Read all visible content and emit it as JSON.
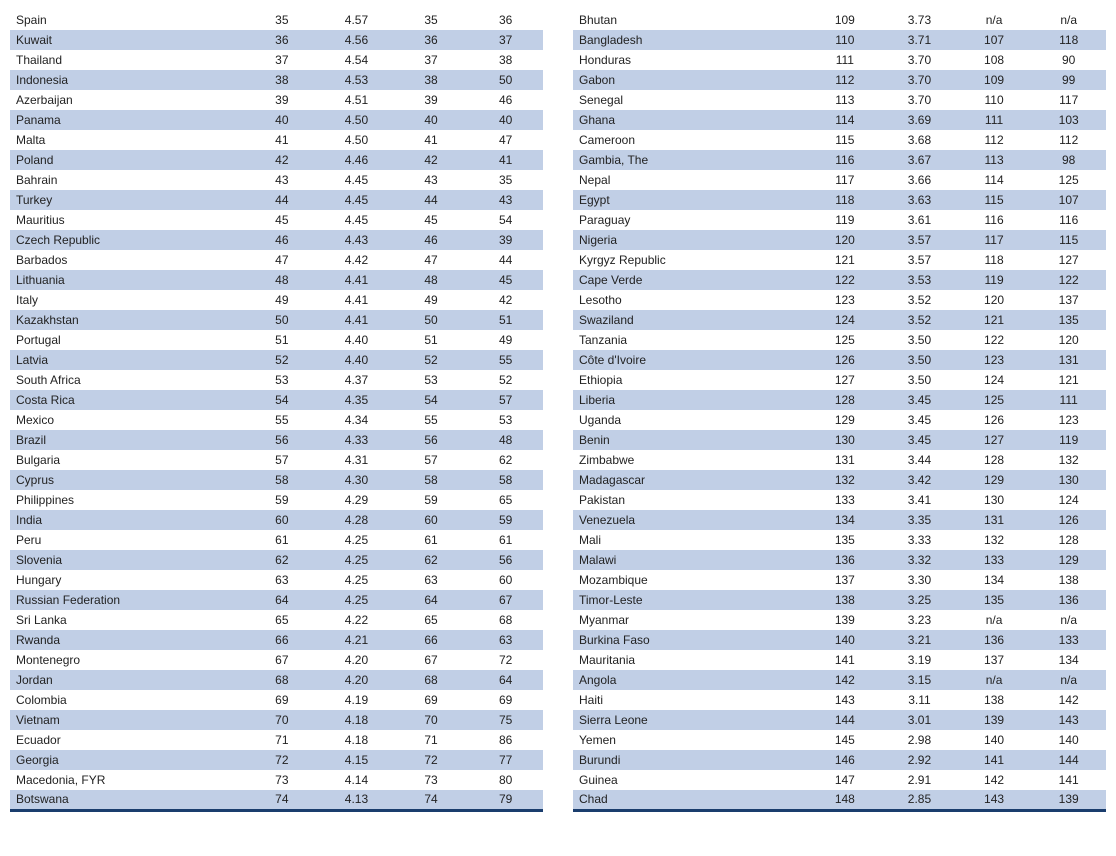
{
  "colors": {
    "stripe": "#c1cfe6",
    "border_bottom": "#1a3d6d",
    "text": "#222222",
    "background": "#ffffff"
  },
  "typography": {
    "font_family": "Arial, Helvetica, sans-serif",
    "font_size_pt": 9
  },
  "left_table": {
    "rows": [
      {
        "country": "Spain",
        "rank1": "35",
        "score": "4.57",
        "rank2": "35",
        "rank3": "36"
      },
      {
        "country": "Kuwait",
        "rank1": "36",
        "score": "4.56",
        "rank2": "36",
        "rank3": "37"
      },
      {
        "country": "Thailand",
        "rank1": "37",
        "score": "4.54",
        "rank2": "37",
        "rank3": "38"
      },
      {
        "country": "Indonesia",
        "rank1": "38",
        "score": "4.53",
        "rank2": "38",
        "rank3": "50"
      },
      {
        "country": "Azerbaijan",
        "rank1": "39",
        "score": "4.51",
        "rank2": "39",
        "rank3": "46"
      },
      {
        "country": "Panama",
        "rank1": "40",
        "score": "4.50",
        "rank2": "40",
        "rank3": "40"
      },
      {
        "country": "Malta",
        "rank1": "41",
        "score": "4.50",
        "rank2": "41",
        "rank3": "47"
      },
      {
        "country": "Poland",
        "rank1": "42",
        "score": "4.46",
        "rank2": "42",
        "rank3": "41"
      },
      {
        "country": "Bahrain",
        "rank1": "43",
        "score": "4.45",
        "rank2": "43",
        "rank3": "35"
      },
      {
        "country": "Turkey",
        "rank1": "44",
        "score": "4.45",
        "rank2": "44",
        "rank3": "43"
      },
      {
        "country": "Mauritius",
        "rank1": "45",
        "score": "4.45",
        "rank2": "45",
        "rank3": "54"
      },
      {
        "country": "Czech Republic",
        "rank1": "46",
        "score": "4.43",
        "rank2": "46",
        "rank3": "39"
      },
      {
        "country": "Barbados",
        "rank1": "47",
        "score": "4.42",
        "rank2": "47",
        "rank3": "44"
      },
      {
        "country": "Lithuania",
        "rank1": "48",
        "score": "4.41",
        "rank2": "48",
        "rank3": "45"
      },
      {
        "country": "Italy",
        "rank1": "49",
        "score": "4.41",
        "rank2": "49",
        "rank3": "42"
      },
      {
        "country": "Kazakhstan",
        "rank1": "50",
        "score": "4.41",
        "rank2": "50",
        "rank3": "51"
      },
      {
        "country": "Portugal",
        "rank1": "51",
        "score": "4.40",
        "rank2": "51",
        "rank3": "49"
      },
      {
        "country": "Latvia",
        "rank1": "52",
        "score": "4.40",
        "rank2": "52",
        "rank3": "55"
      },
      {
        "country": "South Africa",
        "rank1": "53",
        "score": "4.37",
        "rank2": "53",
        "rank3": "52"
      },
      {
        "country": "Costa Rica",
        "rank1": "54",
        "score": "4.35",
        "rank2": "54",
        "rank3": "57"
      },
      {
        "country": "Mexico",
        "rank1": "55",
        "score": "4.34",
        "rank2": "55",
        "rank3": "53"
      },
      {
        "country": "Brazil",
        "rank1": "56",
        "score": "4.33",
        "rank2": "56",
        "rank3": "48"
      },
      {
        "country": "Bulgaria",
        "rank1": "57",
        "score": "4.31",
        "rank2": "57",
        "rank3": "62"
      },
      {
        "country": "Cyprus",
        "rank1": "58",
        "score": "4.30",
        "rank2": "58",
        "rank3": "58"
      },
      {
        "country": "Philippines",
        "rank1": "59",
        "score": "4.29",
        "rank2": "59",
        "rank3": "65"
      },
      {
        "country": "India",
        "rank1": "60",
        "score": "4.28",
        "rank2": "60",
        "rank3": "59"
      },
      {
        "country": "Peru",
        "rank1": "61",
        "score": "4.25",
        "rank2": "61",
        "rank3": "61"
      },
      {
        "country": "Slovenia",
        "rank1": "62",
        "score": "4.25",
        "rank2": "62",
        "rank3": "56"
      },
      {
        "country": "Hungary",
        "rank1": "63",
        "score": "4.25",
        "rank2": "63",
        "rank3": "60"
      },
      {
        "country": "Russian Federation",
        "rank1": "64",
        "score": "4.25",
        "rank2": "64",
        "rank3": "67"
      },
      {
        "country": "Sri Lanka",
        "rank1": "65",
        "score": "4.22",
        "rank2": "65",
        "rank3": "68"
      },
      {
        "country": "Rwanda",
        "rank1": "66",
        "score": "4.21",
        "rank2": "66",
        "rank3": "63"
      },
      {
        "country": "Montenegro",
        "rank1": "67",
        "score": "4.20",
        "rank2": "67",
        "rank3": "72"
      },
      {
        "country": "Jordan",
        "rank1": "68",
        "score": "4.20",
        "rank2": "68",
        "rank3": "64"
      },
      {
        "country": "Colombia",
        "rank1": "69",
        "score": "4.19",
        "rank2": "69",
        "rank3": "69"
      },
      {
        "country": "Vietnam",
        "rank1": "70",
        "score": "4.18",
        "rank2": "70",
        "rank3": "75"
      },
      {
        "country": "Ecuador",
        "rank1": "71",
        "score": "4.18",
        "rank2": "71",
        "rank3": "86"
      },
      {
        "country": "Georgia",
        "rank1": "72",
        "score": "4.15",
        "rank2": "72",
        "rank3": "77"
      },
      {
        "country": "Macedonia, FYR",
        "rank1": "73",
        "score": "4.14",
        "rank2": "73",
        "rank3": "80"
      },
      {
        "country": "Botswana",
        "rank1": "74",
        "score": "4.13",
        "rank2": "74",
        "rank3": "79"
      }
    ]
  },
  "right_table": {
    "rows": [
      {
        "country": "Bhutan",
        "rank1": "109",
        "score": "3.73",
        "rank2": "n/a",
        "rank3": "n/a"
      },
      {
        "country": "Bangladesh",
        "rank1": "110",
        "score": "3.71",
        "rank2": "107",
        "rank3": "118"
      },
      {
        "country": "Honduras",
        "rank1": "111",
        "score": "3.70",
        "rank2": "108",
        "rank3": "90"
      },
      {
        "country": "Gabon",
        "rank1": "112",
        "score": "3.70",
        "rank2": "109",
        "rank3": "99"
      },
      {
        "country": "Senegal",
        "rank1": "113",
        "score": "3.70",
        "rank2": "110",
        "rank3": "117"
      },
      {
        "country": "Ghana",
        "rank1": "114",
        "score": "3.69",
        "rank2": "111",
        "rank3": "103"
      },
      {
        "country": "Cameroon",
        "rank1": "115",
        "score": "3.68",
        "rank2": "112",
        "rank3": "112"
      },
      {
        "country": "Gambia, The",
        "rank1": "116",
        "score": "3.67",
        "rank2": "113",
        "rank3": "98"
      },
      {
        "country": "Nepal",
        "rank1": "117",
        "score": "3.66",
        "rank2": "114",
        "rank3": "125"
      },
      {
        "country": "Egypt",
        "rank1": "118",
        "score": "3.63",
        "rank2": "115",
        "rank3": "107"
      },
      {
        "country": "Paraguay",
        "rank1": "119",
        "score": "3.61",
        "rank2": "116",
        "rank3": "116"
      },
      {
        "country": "Nigeria",
        "rank1": "120",
        "score": "3.57",
        "rank2": "117",
        "rank3": "115"
      },
      {
        "country": "Kyrgyz Republic",
        "rank1": "121",
        "score": "3.57",
        "rank2": "118",
        "rank3": "127"
      },
      {
        "country": "Cape Verde",
        "rank1": "122",
        "score": "3.53",
        "rank2": "119",
        "rank3": "122"
      },
      {
        "country": "Lesotho",
        "rank1": "123",
        "score": "3.52",
        "rank2": "120",
        "rank3": "137"
      },
      {
        "country": "Swaziland",
        "rank1": "124",
        "score": "3.52",
        "rank2": "121",
        "rank3": "135"
      },
      {
        "country": "Tanzania",
        "rank1": "125",
        "score": "3.50",
        "rank2": "122",
        "rank3": "120"
      },
      {
        "country": "Côte d'Ivoire",
        "rank1": "126",
        "score": "3.50",
        "rank2": "123",
        "rank3": "131"
      },
      {
        "country": "Ethiopia",
        "rank1": "127",
        "score": "3.50",
        "rank2": "124",
        "rank3": "121"
      },
      {
        "country": "Liberia",
        "rank1": "128",
        "score": "3.45",
        "rank2": "125",
        "rank3": "111"
      },
      {
        "country": "Uganda",
        "rank1": "129",
        "score": "3.45",
        "rank2": "126",
        "rank3": "123"
      },
      {
        "country": "Benin",
        "rank1": "130",
        "score": "3.45",
        "rank2": "127",
        "rank3": "119"
      },
      {
        "country": "Zimbabwe",
        "rank1": "131",
        "score": "3.44",
        "rank2": "128",
        "rank3": "132"
      },
      {
        "country": "Madagascar",
        "rank1": "132",
        "score": "3.42",
        "rank2": "129",
        "rank3": "130"
      },
      {
        "country": "Pakistan",
        "rank1": "133",
        "score": "3.41",
        "rank2": "130",
        "rank3": "124"
      },
      {
        "country": "Venezuela",
        "rank1": "134",
        "score": "3.35",
        "rank2": "131",
        "rank3": "126"
      },
      {
        "country": "Mali",
        "rank1": "135",
        "score": "3.33",
        "rank2": "132",
        "rank3": "128"
      },
      {
        "country": "Malawi",
        "rank1": "136",
        "score": "3.32",
        "rank2": "133",
        "rank3": "129"
      },
      {
        "country": "Mozambique",
        "rank1": "137",
        "score": "3.30",
        "rank2": "134",
        "rank3": "138"
      },
      {
        "country": "Timor-Leste",
        "rank1": "138",
        "score": "3.25",
        "rank2": "135",
        "rank3": "136"
      },
      {
        "country": "Myanmar",
        "rank1": "139",
        "score": "3.23",
        "rank2": "n/a",
        "rank3": "n/a"
      },
      {
        "country": "Burkina Faso",
        "rank1": "140",
        "score": "3.21",
        "rank2": "136",
        "rank3": "133"
      },
      {
        "country": "Mauritania",
        "rank1": "141",
        "score": "3.19",
        "rank2": "137",
        "rank3": "134"
      },
      {
        "country": "Angola",
        "rank1": "142",
        "score": "3.15",
        "rank2": "n/a",
        "rank3": "n/a"
      },
      {
        "country": "Haiti",
        "rank1": "143",
        "score": "3.11",
        "rank2": "138",
        "rank3": "142"
      },
      {
        "country": "Sierra Leone",
        "rank1": "144",
        "score": "3.01",
        "rank2": "139",
        "rank3": "143"
      },
      {
        "country": "Yemen",
        "rank1": "145",
        "score": "2.98",
        "rank2": "140",
        "rank3": "140"
      },
      {
        "country": "Burundi",
        "rank1": "146",
        "score": "2.92",
        "rank2": "141",
        "rank3": "144"
      },
      {
        "country": "Guinea",
        "rank1": "147",
        "score": "2.91",
        "rank2": "142",
        "rank3": "141"
      },
      {
        "country": "Chad",
        "rank1": "148",
        "score": "2.85",
        "rank2": "143",
        "rank3": "139"
      }
    ]
  }
}
